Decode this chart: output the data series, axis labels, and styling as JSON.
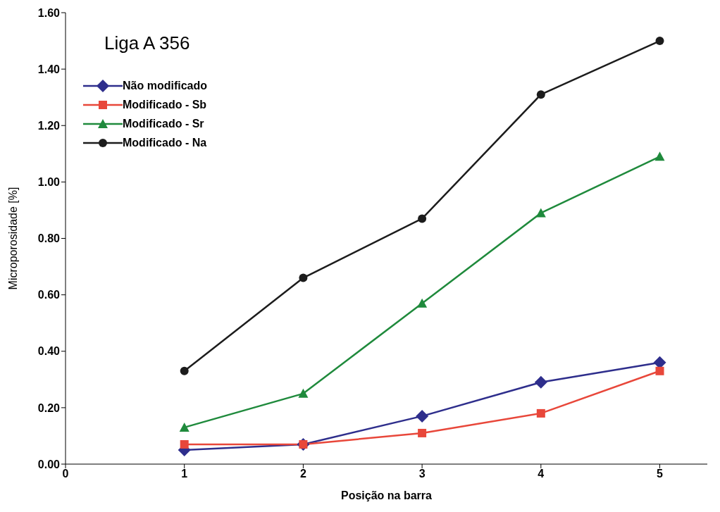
{
  "chart_data": {
    "type": "line",
    "title": "Liga A 356",
    "xlabel": "Posição na barra",
    "ylabel": "Microporosidade [%]",
    "x": [
      1,
      2,
      3,
      4,
      5
    ],
    "series": [
      {
        "name": "Não modificado",
        "color": "#2e2e8c",
        "marker": "diamond",
        "values": [
          0.05,
          0.07,
          0.17,
          0.29,
          0.36
        ]
      },
      {
        "name": "Modificado - Sb",
        "color": "#e8473a",
        "marker": "square",
        "values": [
          0.07,
          0.07,
          0.11,
          0.18,
          0.33
        ]
      },
      {
        "name": "Modificado - Sr",
        "color": "#1f8a3c",
        "marker": "triangle",
        "values": [
          0.13,
          0.25,
          0.57,
          0.89,
          1.09
        ]
      },
      {
        "name": "Modificado - Na",
        "color": "#1c1c1c",
        "marker": "circle",
        "values": [
          0.33,
          0.66,
          0.87,
          1.31,
          1.5
        ]
      }
    ],
    "xlim": [
      0,
      5.4
    ],
    "xticks": [
      0,
      1,
      2,
      3,
      4,
      5
    ],
    "ylim": [
      0,
      1.6
    ],
    "yticks": [
      {
        "value": 0,
        "label": "0.00"
      },
      {
        "value": 0.2,
        "label": "0.20"
      },
      {
        "value": 0.4,
        "label": "0.40"
      },
      {
        "value": 0.6,
        "label": "0.60"
      },
      {
        "value": 0.8,
        "label": "0.80"
      },
      {
        "value": 1,
        "label": "1.00"
      },
      {
        "value": 1.2,
        "label": "1.20"
      },
      {
        "value": 1.4,
        "label": "1.40"
      },
      {
        "value": 1.6,
        "label": "1.60"
      }
    ],
    "grid": false,
    "legend": "top left",
    "line_style": "solid"
  }
}
